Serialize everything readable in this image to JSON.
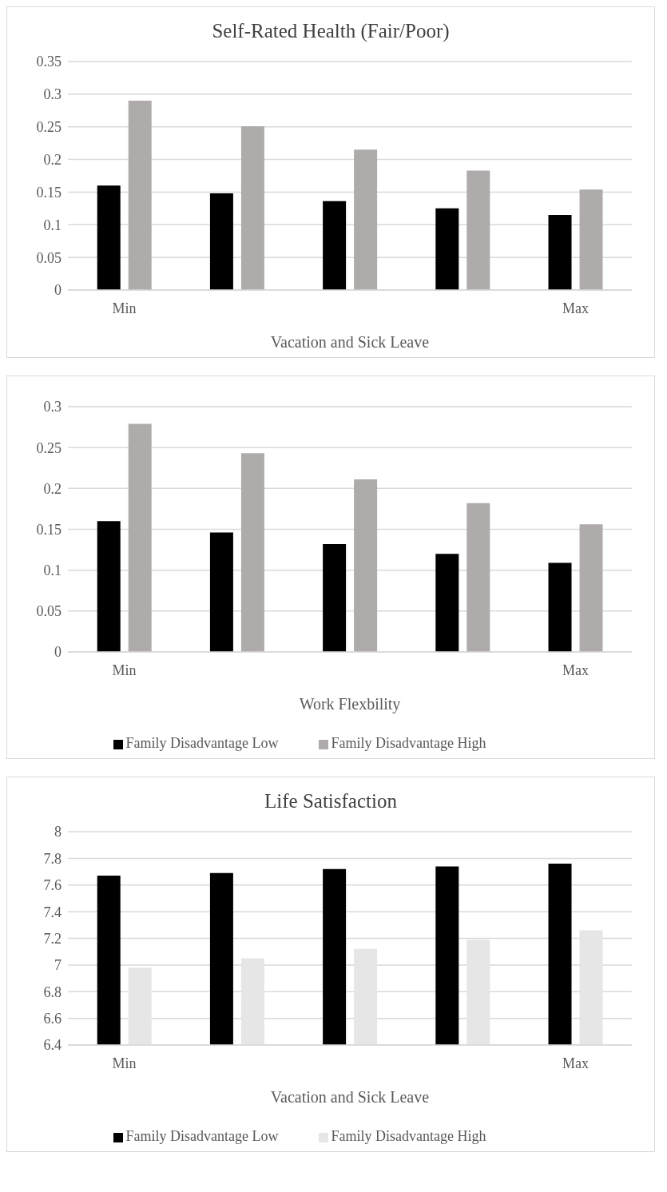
{
  "chart_data": [
    {
      "type": "bar",
      "title": "Self-Rated Health (Fair/Poor)",
      "xlabel": "Vacation and Sick Leave",
      "categories": [
        "Min",
        null,
        null,
        null,
        "Max"
      ],
      "series": [
        {
          "color": "#000000",
          "values": [
            0.16,
            0.148,
            0.136,
            0.125,
            0.115
          ]
        },
        {
          "color": "#afabab",
          "values": [
            0.29,
            0.251,
            0.215,
            0.183,
            0.154
          ]
        }
      ],
      "ylim": [
        0,
        0.35
      ],
      "yticks": [
        0,
        0.05,
        0.1,
        0.15,
        0.2,
        0.25,
        0.3,
        0.35
      ],
      "grid": "y"
    },
    {
      "type": "bar",
      "xlabel": "Work Flexbility",
      "categories": [
        "Min",
        null,
        null,
        null,
        "Max"
      ],
      "series": [
        {
          "name": "Family Disadvantage Low",
          "color": "#000000",
          "values": [
            0.16,
            0.146,
            0.132,
            0.12,
            0.109
          ]
        },
        {
          "name": "Family Disadvantage High",
          "color": "#afabab",
          "values": [
            0.279,
            0.243,
            0.211,
            0.182,
            0.156
          ]
        }
      ],
      "ylim": [
        0,
        0.3
      ],
      "yticks": [
        0,
        0.05,
        0.1,
        0.15,
        0.2,
        0.25,
        0.3
      ],
      "grid": "y",
      "legend": "bottom"
    },
    {
      "type": "bar",
      "title": "Life Satisfaction",
      "xlabel": "Vacation and Sick Leave",
      "categories": [
        "Min",
        null,
        null,
        null,
        "Max"
      ],
      "series": [
        {
          "name": "Family Disadvantage Low",
          "color": "#000000",
          "values": [
            7.67,
            7.69,
            7.72,
            7.74,
            7.76
          ]
        },
        {
          "name": "Family Disadvantage High",
          "color": "#e7e6e6",
          "values": [
            6.98,
            7.05,
            7.12,
            7.19,
            7.26
          ]
        }
      ],
      "ylim": [
        6.4,
        8
      ],
      "yticks": [
        6.4,
        6.6,
        6.8,
        7,
        7.2,
        7.4,
        7.6,
        7.8,
        8
      ],
      "grid": "y",
      "legend": "bottom"
    }
  ]
}
